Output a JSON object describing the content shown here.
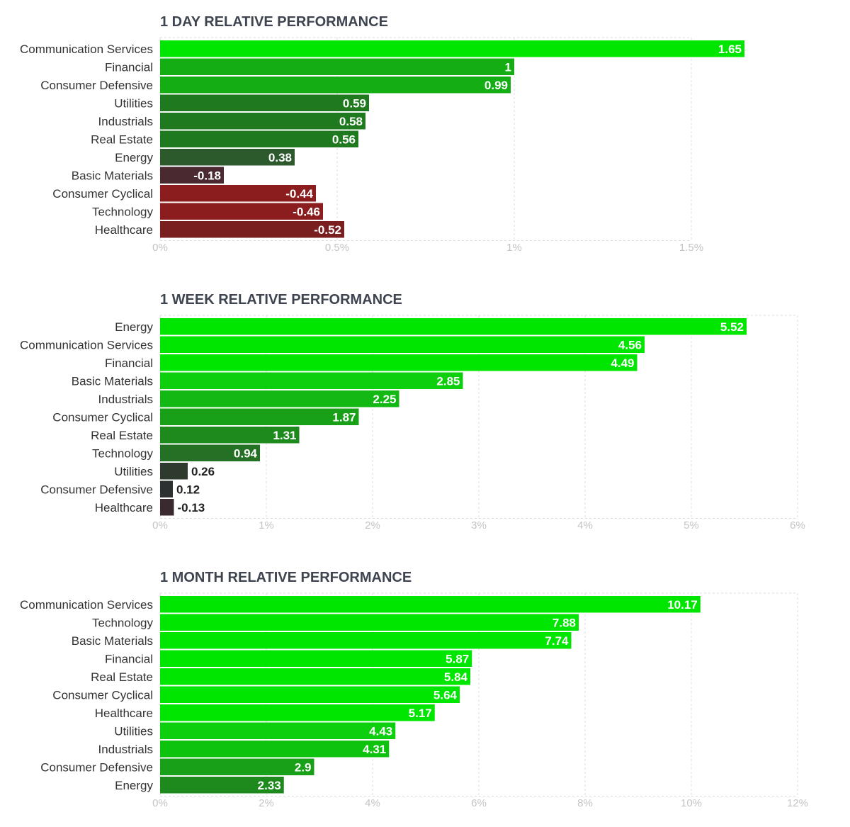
{
  "chart_data": [
    {
      "type": "bar",
      "orientation": "horizontal",
      "title": "1 DAY RELATIVE PERFORMANCE",
      "categories": [
        "Communication Services",
        "Financial",
        "Consumer Defensive",
        "Utilities",
        "Industrials",
        "Real Estate",
        "Energy",
        "Basic Materials",
        "Consumer Cyclical",
        "Technology",
        "Healthcare"
      ],
      "values": [
        1.65,
        1,
        0.99,
        0.59,
        0.58,
        0.56,
        0.38,
        -0.18,
        -0.44,
        -0.46,
        -0.52
      ],
      "value_labels": [
        "1.65",
        "1",
        "0.99",
        "0.59",
        "0.58",
        "0.56",
        "0.38",
        "-0.18",
        "-0.44",
        "-0.46",
        "-0.52"
      ],
      "xlim": [
        0,
        1.5
      ],
      "xticks": [
        0,
        0.5,
        1,
        1.5
      ],
      "xtick_labels": [
        "0%",
        "0.5%",
        "1%",
        "1.5%"
      ],
      "bar_colors": [
        "#00e600",
        "#14ad14",
        "#14ad14",
        "#1f7a1f",
        "#1f7a1f",
        "#1f7a1f",
        "#2d5a2d",
        "#4a2a30",
        "#8b1d1f",
        "#8b1d1f",
        "#7a1f1f"
      ],
      "grid": true
    },
    {
      "type": "bar",
      "orientation": "horizontal",
      "title": "1 WEEK RELATIVE PERFORMANCE",
      "categories": [
        "Energy",
        "Communication Services",
        "Financial",
        "Basic Materials",
        "Industrials",
        "Consumer Cyclical",
        "Real Estate",
        "Technology",
        "Utilities",
        "Consumer Defensive",
        "Healthcare"
      ],
      "values": [
        5.52,
        4.56,
        4.49,
        2.85,
        2.25,
        1.87,
        1.31,
        0.94,
        0.26,
        0.12,
        -0.13
      ],
      "value_labels": [
        "5.52",
        "4.56",
        "4.49",
        "2.85",
        "2.25",
        "1.87",
        "1.31",
        "0.94",
        "0.26",
        "0.12",
        "-0.13"
      ],
      "xlim": [
        0,
        6
      ],
      "xticks": [
        0,
        1,
        2,
        3,
        4,
        5,
        6
      ],
      "xtick_labels": [
        "0%",
        "1%",
        "2%",
        "3%",
        "4%",
        "5%",
        "6%"
      ],
      "bar_colors": [
        "#00e600",
        "#00e600",
        "#00e600",
        "#0dcf0d",
        "#14b814",
        "#18a018",
        "#1e8a1e",
        "#247024",
        "#2d3a2d",
        "#2d3030",
        "#3a2a30"
      ],
      "grid": true
    },
    {
      "type": "bar",
      "orientation": "horizontal",
      "title": "1 MONTH RELATIVE PERFORMANCE",
      "categories": [
        "Communication Services",
        "Technology",
        "Basic Materials",
        "Financial",
        "Real Estate",
        "Consumer Cyclical",
        "Healthcare",
        "Utilities",
        "Industrials",
        "Consumer Defensive",
        "Energy"
      ],
      "values": [
        10.17,
        7.88,
        7.74,
        5.87,
        5.84,
        5.64,
        5.17,
        4.43,
        4.31,
        2.9,
        2.33
      ],
      "value_labels": [
        "10.17",
        "7.88",
        "7.74",
        "5.87",
        "5.84",
        "5.64",
        "5.17",
        "4.43",
        "4.31",
        "2.9",
        "2.33"
      ],
      "xlim": [
        0,
        12
      ],
      "xticks": [
        0,
        2,
        4,
        6,
        8,
        10,
        12
      ],
      "xtick_labels": [
        "0%",
        "2%",
        "4%",
        "6%",
        "8%",
        "10%",
        "12%"
      ],
      "bar_colors": [
        "#00e600",
        "#00e600",
        "#00e600",
        "#00e600",
        "#00e600",
        "#00e600",
        "#00e600",
        "#0dcf0d",
        "#0dc30d",
        "#18a018",
        "#1e8a1e"
      ],
      "grid": true
    }
  ]
}
